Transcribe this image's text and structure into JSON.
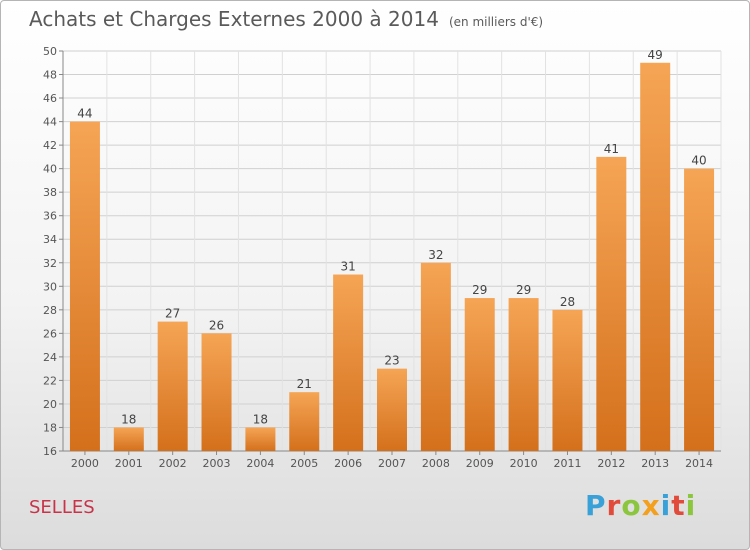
{
  "header": {
    "title": "Achats et Charges Externes 2000 à 2014",
    "subtitle": "(en milliers d'€)"
  },
  "footer": {
    "commune": "SELLES",
    "logo_text": "Proxiti",
    "logo_colors": [
      "#3aa0d8",
      "#e14b3b",
      "#8cc63f",
      "#f2a01e",
      "#3aa0d8",
      "#e14b3b",
      "#8cc63f"
    ]
  },
  "chart_data": {
    "type": "bar",
    "title": "Achats et Charges Externes 2000 à 2014",
    "subtitle": "(en milliers d'€)",
    "categories": [
      "2000",
      "2001",
      "2002",
      "2003",
      "2004",
      "2005",
      "2006",
      "2007",
      "2008",
      "2009",
      "2010",
      "2011",
      "2012",
      "2013",
      "2014"
    ],
    "values": [
      44,
      18,
      27,
      26,
      18,
      21,
      31,
      23,
      32,
      29,
      29,
      28,
      41,
      49,
      40
    ],
    "ylim": [
      16,
      50
    ],
    "yticks": [
      16,
      18,
      20,
      22,
      24,
      26,
      28,
      30,
      32,
      34,
      36,
      38,
      40,
      42,
      44,
      46,
      48,
      50
    ],
    "grid": true,
    "bar_color_top": "#f5a555",
    "bar_color_bottom": "#d4701c",
    "xlabel": "",
    "ylabel": ""
  }
}
